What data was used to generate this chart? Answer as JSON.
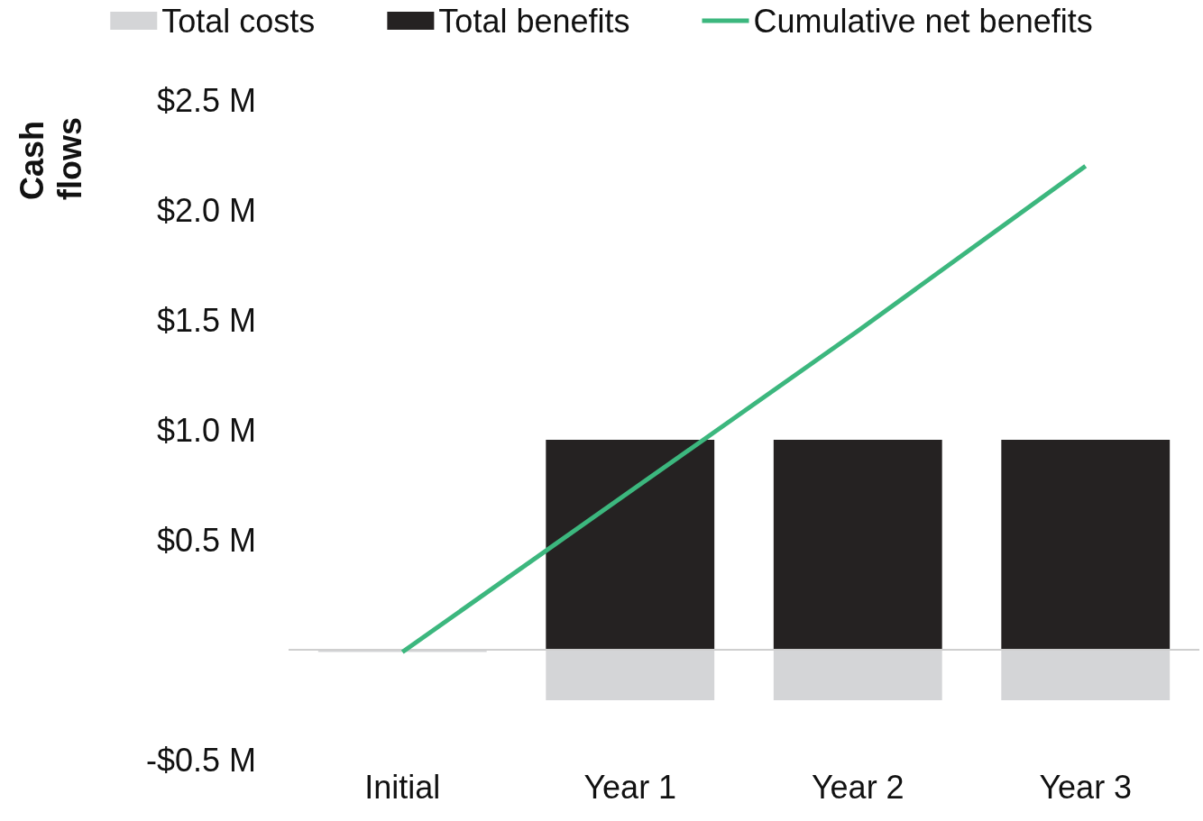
{
  "chart_data": {
    "type": "bar",
    "stacked": true,
    "ylabel": "Cash flows",
    "categories": [
      "Initial",
      "Year 1",
      "Year 2",
      "Year 3"
    ],
    "series": [
      {
        "name": "Total costs",
        "color": "#d4d5d7",
        "values": [
          -0.01,
          -0.23,
          -0.23,
          -0.23
        ]
      },
      {
        "name": "Total benefits",
        "color": "#252222",
        "values": [
          0,
          0.955,
          0.955,
          0.955
        ]
      },
      {
        "name": "Cumulative net benefits",
        "type": "line",
        "color": "#3cb77e",
        "values": [
          -0.01,
          0.72,
          1.45,
          2.2
        ]
      }
    ],
    "ylim": [
      -0.5,
      2.5
    ],
    "yticks": [
      {
        "value": -0.5,
        "label": "-$0.5 M"
      },
      {
        "value": 0,
        "label": null
      },
      {
        "value": 0.5,
        "label": "$0.5 M"
      },
      {
        "value": 1,
        "label": "$1.0 M"
      },
      {
        "value": 1.5,
        "label": "$1.5 M"
      },
      {
        "value": 2,
        "label": "$2.0 M"
      },
      {
        "value": 2.5,
        "label": "$2.5 M"
      }
    ],
    "ref_lines": [
      {
        "axis": "y",
        "value": 0,
        "color": "#cfcfcf"
      }
    ],
    "grid": false,
    "legend": "top",
    "marker": "none"
  }
}
